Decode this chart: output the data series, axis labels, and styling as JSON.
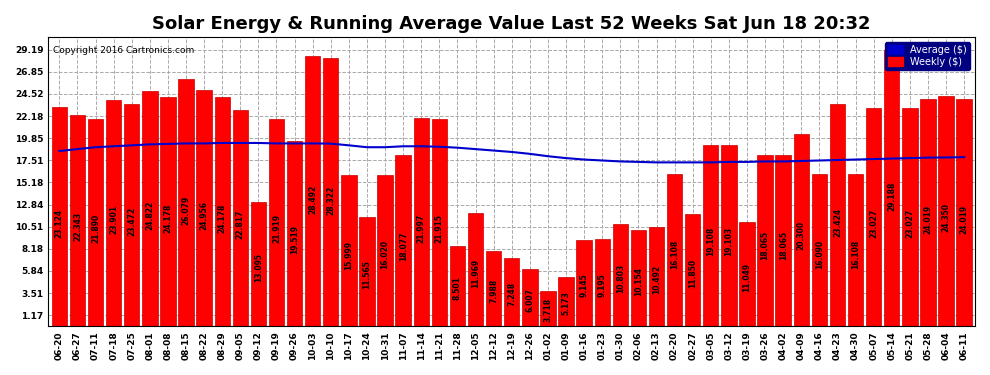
{
  "title": "Solar Energy & Running Average Value Last 52 Weeks Sat Jun 18 20:32",
  "copyright": "Copyright 2016 Cartronics.com",
  "categories": [
    "06-20",
    "06-27",
    "07-11",
    "07-18",
    "07-25",
    "08-01",
    "08-08",
    "08-15",
    "08-22",
    "08-29",
    "09-05",
    "09-12",
    "09-19",
    "09-26",
    "10-03",
    "10-10",
    "10-17",
    "10-24",
    "10-31",
    "11-07",
    "11-14",
    "11-21",
    "11-28",
    "12-05",
    "12-12",
    "12-19",
    "12-26",
    "01-02",
    "01-09",
    "01-16",
    "01-23",
    "01-30",
    "02-06",
    "02-13",
    "02-20",
    "02-27",
    "03-05",
    "03-12",
    "03-19",
    "03-26",
    "04-02",
    "04-09",
    "04-16",
    "04-23",
    "04-30",
    "05-07",
    "05-14",
    "05-21",
    "05-28",
    "06-04",
    "06-11"
  ],
  "weekly_values": [
    23.124,
    22.343,
    21.89,
    23.901,
    23.472,
    24.822,
    24.178,
    26.079,
    24.956,
    24.178,
    22.817,
    13.095,
    21.919,
    19.519,
    28.492,
    28.322,
    15.999,
    11.565,
    16.02,
    18.077,
    21.997,
    21.915,
    8.501,
    11.969,
    7.988,
    7.248,
    6.007,
    3.718,
    5.173,
    9.145,
    9.195,
    10.803,
    10.154,
    10.492,
    16.108,
    11.85,
    19.108,
    19.103,
    11.049,
    18.065,
    18.065,
    20.3,
    16.09,
    23.424,
    16.108,
    23.027,
    29.188,
    23.027,
    24.019,
    24.35,
    24.019
  ],
  "running_avg": [
    18.5,
    18.7,
    18.9,
    19.0,
    19.1,
    19.2,
    19.25,
    19.3,
    19.3,
    19.35,
    19.35,
    19.35,
    19.3,
    19.3,
    19.3,
    19.28,
    19.1,
    18.9,
    18.9,
    19.0,
    19.0,
    18.95,
    18.85,
    18.7,
    18.55,
    18.4,
    18.2,
    17.95,
    17.75,
    17.6,
    17.5,
    17.4,
    17.35,
    17.3,
    17.3,
    17.3,
    17.3,
    17.35,
    17.35,
    17.4,
    17.4,
    17.45,
    17.5,
    17.55,
    17.6,
    17.65,
    17.7,
    17.75,
    17.8,
    17.82,
    17.85
  ],
  "bar_values_text": [
    "23.124",
    "22.343",
    "21.890",
    "23.901",
    "23.472",
    "24.822",
    "24.178",
    "26.079",
    "24.956",
    "24.178",
    "22.817",
    "13.095",
    "21.919",
    "19.519",
    "28.492",
    "28.322",
    "15.999",
    "11.565",
    "16.020",
    "18.077",
    "21.997",
    "21.915",
    "8.501",
    "11.969",
    "7.988",
    "7.248",
    "6.007",
    "3.718",
    "5.173",
    "9.145",
    "9.195",
    "10.803",
    "10.154",
    "10.492",
    "16.108",
    "11.850",
    "19.108",
    "19.103",
    "11.049",
    "18.065",
    "18.065",
    "20.300",
    "16.090",
    "23.424",
    "16.108",
    "23.027",
    "29.188",
    "23.027",
    "24.019",
    "24.350",
    "24.019"
  ],
  "bar_color": "#FF0000",
  "bar_edge_color": "#CC0000",
  "line_color": "#0000CC",
  "background_color": "#FFFFFF",
  "plot_bg_color": "#FFFFFF",
  "grid_color": "#AAAAAA",
  "yticks": [
    1.17,
    3.51,
    5.84,
    8.18,
    10.51,
    12.84,
    15.18,
    17.51,
    19.85,
    22.18,
    24.52,
    26.85,
    29.19
  ],
  "ylim": [
    0,
    30.5
  ],
  "legend_avg_color": "#0000CC",
  "legend_weekly_color": "#FF0000",
  "title_fontsize": 13,
  "tick_fontsize": 6.5,
  "value_fontsize": 5.5
}
